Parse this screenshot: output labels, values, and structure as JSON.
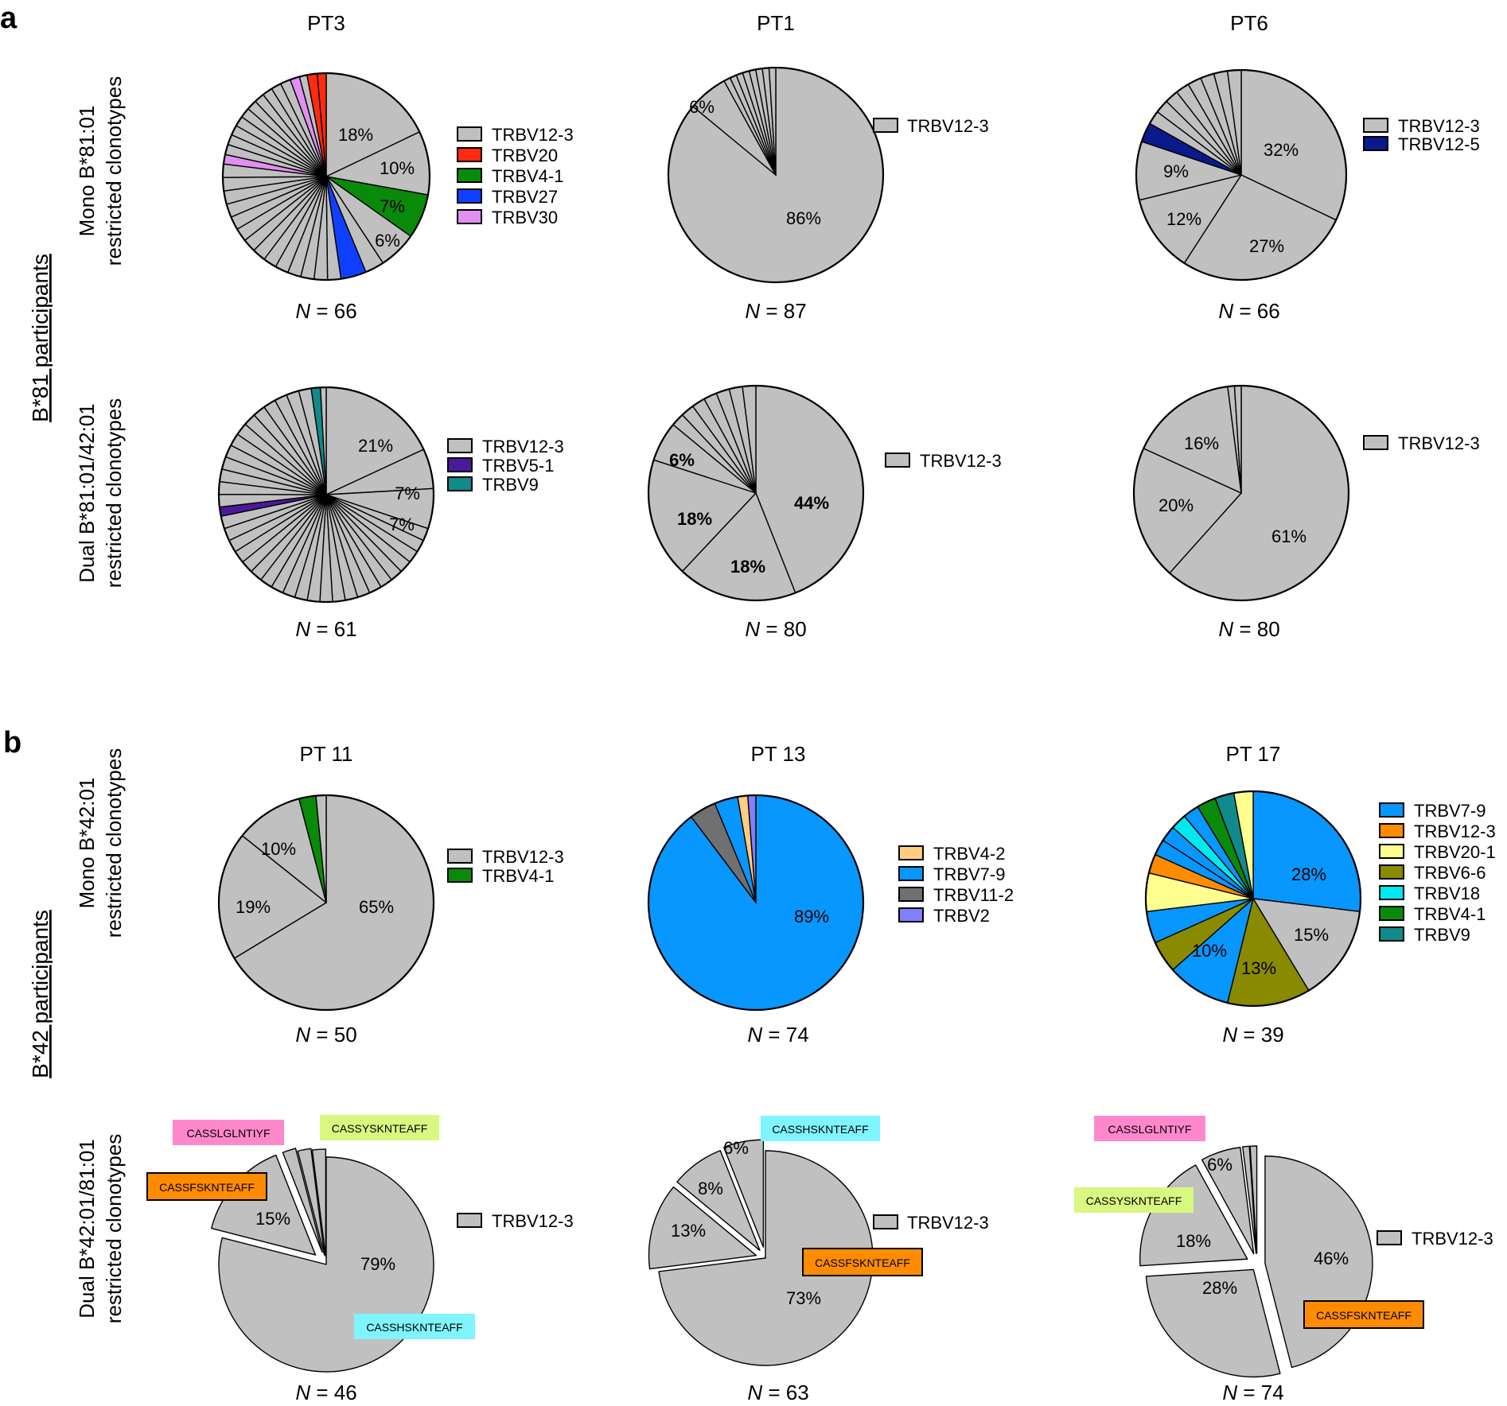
{
  "panel_labels": [
    "a",
    "b"
  ],
  "group_labels": [
    "B*81 participants",
    "B*42 participants"
  ],
  "row_labels": [
    [
      "Mono B*81:01",
      "restricted clonotypes"
    ],
    [
      "Dual B*81:01/42:01",
      "restricted clonotypes"
    ],
    [
      "Mono B*42:01",
      "restricted clonotypes"
    ],
    [
      "Dual B*42:01/81:01",
      "restricted clonotypes"
    ]
  ],
  "colors": {
    "TRBV12-3": "#c0c0c0",
    "TRBV20": "#ff2a10",
    "TRBV4-1": "#0a8a0a",
    "TRBV27": "#1040ff",
    "TRBV30": "#e090f0",
    "TRBV12-5": "#0a1a8a",
    "TRBV5-1": "#4a1a9a",
    "TRBV9": "#108a8a",
    "TRBV4-2": "#ffcc80",
    "TRBV7-9": "#0896ff",
    "TRBV11-2": "#707070",
    "TRBV2": "#8080ff",
    "TRBV12-3b": "#ff8c00",
    "TRBV20-1": "#ffff90",
    "TRBV6-6": "#8a8a00",
    "TRBV18": "#00e8f0",
    "CASSLGLNTIYF": "#ff88cc",
    "CASSYSKNTEAFF": "#d8f880",
    "CASSFSKNTEAFF": "#ff8c00",
    "CASSHSKNTEAFF": "#80f4ff"
  },
  "chart_data": [
    {
      "type": "pie",
      "title": "PT3",
      "row": "Mono B*81:01 restricted clonotypes",
      "n_label": "66",
      "labeled_slices": [
        18,
        10,
        7,
        6
      ],
      "slice_labels": [
        "18%",
        "10%",
        "7%",
        "6%"
      ],
      "legend": [
        "TRBV12-3",
        "TRBV20",
        "TRBV4-1",
        "TRBV27",
        "TRBV30"
      ]
    },
    {
      "type": "pie",
      "title": "PT1",
      "row": "Mono B*81:01 restricted clonotypes",
      "n_label": "87",
      "labeled_slices": [
        86,
        6
      ],
      "slice_labels": [
        "86%",
        "6%"
      ],
      "legend": [
        "TRBV12-3"
      ]
    },
    {
      "type": "pie",
      "title": "PT6",
      "row": "Mono B*81:01 restricted clonotypes",
      "n_label": "66",
      "labeled_slices": [
        32,
        27,
        12,
        9
      ],
      "slice_labels": [
        "32%",
        "27%",
        "12%",
        "9%"
      ],
      "legend": [
        "TRBV12-3",
        "TRBV12-5"
      ]
    },
    {
      "type": "pie",
      "title": "PT3",
      "row": "Dual B*81:01/42:01 restricted clonotypes",
      "n_label": "61",
      "labeled_slices": [
        21,
        7,
        7
      ],
      "slice_labels": [
        "21%",
        "7%",
        "7%"
      ],
      "legend": [
        "TRBV12-3",
        "TRBV5-1",
        "TRBV9"
      ]
    },
    {
      "type": "pie",
      "title": "PT1",
      "row": "Dual B*81:01/42:01 restricted clonotypes",
      "n_label": "80",
      "labeled_slices": [
        44,
        18,
        18,
        6
      ],
      "slice_labels": [
        "44%",
        "18%",
        "18%",
        "6%"
      ],
      "legend": [
        "TRBV12-3"
      ]
    },
    {
      "type": "pie",
      "title": "PT6",
      "row": "Dual B*81:01/42:01 restricted clonotypes",
      "n_label": "80",
      "labeled_slices": [
        61,
        20,
        16
      ],
      "slice_labels": [
        "61%",
        "20%",
        "16%"
      ],
      "legend": [
        "TRBV12-3"
      ]
    },
    {
      "type": "pie",
      "title": "PT 11",
      "row": "Mono B*42:01 restricted clonotypes",
      "n_label": "50",
      "labeled_slices": [
        65,
        19,
        10
      ],
      "slice_labels": [
        "65%",
        "19%",
        "10%"
      ],
      "legend": [
        "TRBV12-3",
        "TRBV4-1"
      ]
    },
    {
      "type": "pie",
      "title": "PT 13",
      "row": "Mono B*42:01 restricted clonotypes",
      "n_label": "74",
      "labeled_slices": [
        89
      ],
      "slice_labels": [
        "89%"
      ],
      "legend": [
        "TRBV4-2",
        "TRBV7-9",
        "TRBV11-2",
        "TRBV2"
      ]
    },
    {
      "type": "pie",
      "title": "PT 17",
      "row": "Mono B*42:01 restricted clonotypes",
      "n_label": "39",
      "labeled_slices": [
        28,
        15,
        13,
        10
      ],
      "slice_labels": [
        "28%",
        "15%",
        "13%",
        "10%"
      ],
      "legend": [
        "TRBV7-9",
        "TRBV12-3",
        "TRBV20-1",
        "TRBV6-6",
        "TRBV18",
        "TRBV4-1",
        "TRBV9"
      ]
    },
    {
      "type": "pie",
      "row": "Dual B*42:01/81:01 restricted clonotypes",
      "n_label": "46",
      "labeled_slices": [
        79,
        15
      ],
      "slice_labels": [
        "79%",
        "15%"
      ],
      "legend": [
        "TRBV12-3"
      ],
      "annotations": [
        "CASSLGLNTIYF",
        "CASSYSKNTEAFF",
        "CASSFSKNTEAFF",
        "CASSHSKNTEAFF"
      ]
    },
    {
      "type": "pie",
      "row": "Dual B*42:01/81:01 restricted clonotypes",
      "n_label": "63",
      "labeled_slices": [
        73,
        13,
        8,
        6
      ],
      "slice_labels": [
        "73%",
        "13%",
        "8%",
        "6%"
      ],
      "legend": [
        "TRBV12-3"
      ],
      "annotations": [
        "CASSHSKNTEAFF",
        "CASSFSKNTEAFF"
      ]
    },
    {
      "type": "pie",
      "row": "Dual B*42:01/81:01 restricted clonotypes",
      "n_label": "74",
      "labeled_slices": [
        46,
        28,
        18,
        6
      ],
      "slice_labels": [
        "46%",
        "28%",
        "18%",
        "6%"
      ],
      "legend": [
        "TRBV12-3"
      ],
      "annotations": [
        "CASSLGLNTIYF",
        "CASSYSKNTEAFF",
        "CASSFSKNTEAFF"
      ]
    }
  ]
}
